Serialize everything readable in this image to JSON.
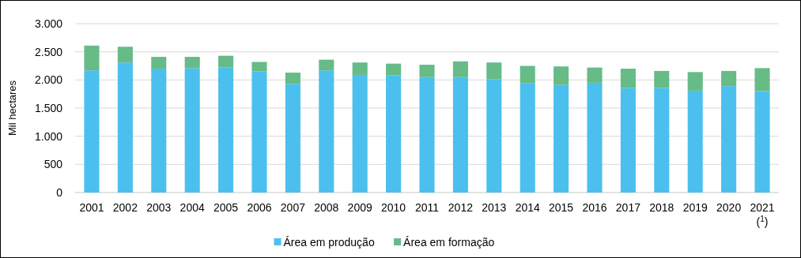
{
  "chart_data": {
    "type": "bar",
    "stacked": true,
    "ylabel": "Mil hectares",
    "categories": [
      "2001",
      "2002",
      "2003",
      "2004",
      "2005",
      "2006",
      "2007",
      "2008",
      "2009",
      "2010",
      "2011",
      "2012",
      "2013",
      "2014",
      "2015",
      "2016",
      "2017",
      "2018",
      "2019",
      "2020",
      "2021\n($^{1}$)"
    ],
    "series": [
      {
        "name": "Área em produção",
        "color": "#4bc0ee",
        "values": [
          2170,
          2310,
          2200,
          2210,
          2220,
          2150,
          1930,
          2170,
          2090,
          2080,
          2050,
          2050,
          2010,
          1940,
          1910,
          1950,
          1860,
          1860,
          1810,
          1890,
          1800
        ]
      },
      {
        "name": "Área em formação",
        "color": "#66bb87",
        "values": [
          440,
          280,
          210,
          200,
          210,
          170,
          200,
          190,
          220,
          210,
          220,
          280,
          300,
          310,
          330,
          270,
          340,
          300,
          330,
          270,
          410
        ]
      }
    ],
    "ylim": [
      0,
      3000
    ],
    "yticks": [
      0,
      {
        "value": 500,
        "label": "500"
      },
      {
        "value": 1000,
        "label": "1.000"
      },
      {
        "value": 1500,
        "label": "1.500"
      },
      {
        "value": 2000,
        "label": "2.000"
      },
      {
        "value": 2500,
        "label": "2.500"
      },
      {
        "value": 3000,
        "label": "3.000"
      }
    ],
    "grid": "y",
    "legend": "bottom"
  }
}
